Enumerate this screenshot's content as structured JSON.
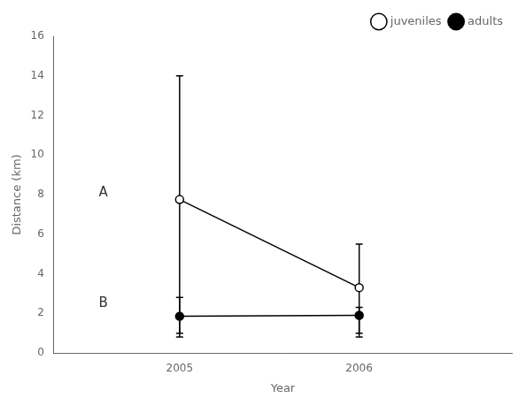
{
  "chart_data": {
    "type": "line",
    "x": [
      2005,
      2006
    ],
    "series": [
      {
        "name": "juveniles",
        "color": "#000000",
        "marker": "open circle",
        "values": [
          7.75,
          3.3
        ],
        "err_lower": [
          6.75,
          2.3
        ],
        "err_upper": [
          6.25,
          2.2
        ]
      },
      {
        "name": "adults",
        "color": "#000000",
        "marker": "circle",
        "values": [
          1.85,
          1.9
        ],
        "err_lower": [
          1.05,
          1.1
        ],
        "err_upper": [
          0.95,
          0.4
        ]
      }
    ],
    "xlabel": "Year",
    "ylabel": "Distance (km)",
    "xlim": [
      2004.3,
      2006.85
    ],
    "xticks": [
      2005,
      2006
    ],
    "ylim": [
      0,
      16
    ],
    "yticks": [
      0,
      2,
      4,
      6,
      8,
      10,
      12,
      14,
      16
    ],
    "annotations": [
      {
        "x": 2004.55,
        "y": 8.1,
        "text": "A"
      },
      {
        "x": 2004.55,
        "y": 2.5,
        "text": "B"
      }
    ],
    "legend": "upper right",
    "grid": false
  }
}
